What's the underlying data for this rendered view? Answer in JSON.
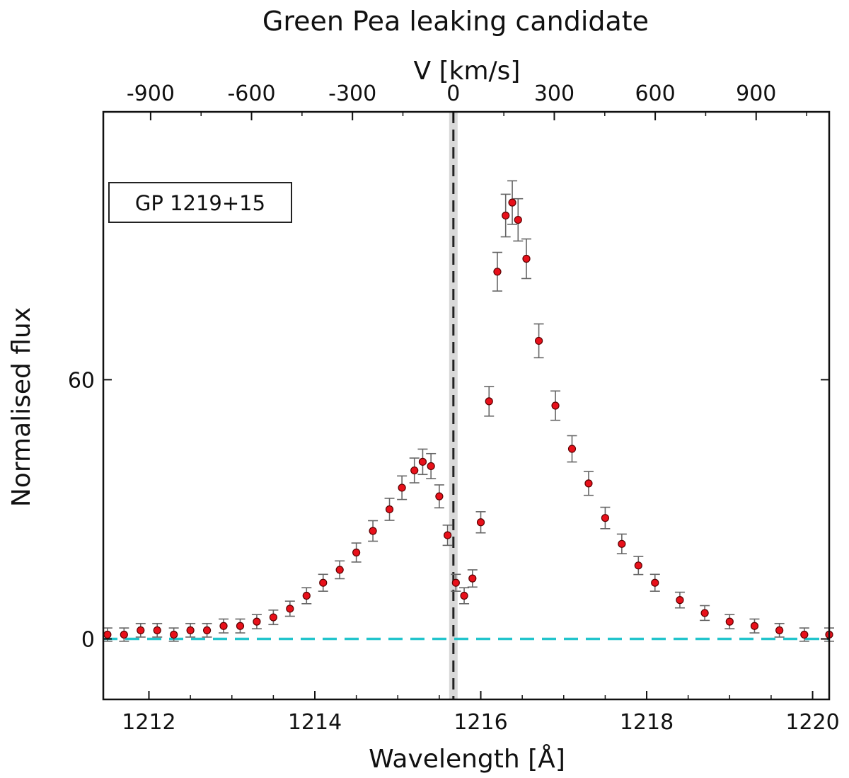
{
  "chart_data": {
    "type": "scatter",
    "title": "Green Pea leaking candidate",
    "xlabel": "Wavelength [Å]",
    "ylabel": "Normalised flux",
    "top_xlabel": "V [km/s]",
    "xlim": [
      1211.45,
      1220.2
    ],
    "ylim": [
      -14,
      122
    ],
    "x_ticks": [
      1212,
      1214,
      1216,
      1218,
      1220
    ],
    "x_tick_labels": [
      "1212",
      "1214",
      "1216",
      "1218",
      "1220"
    ],
    "y_ticks": [
      0,
      60
    ],
    "y_tick_labels": [
      "0",
      "60"
    ],
    "top_ticks_kms": [
      -900,
      -600,
      -300,
      0,
      300,
      600,
      900
    ],
    "top_tick_labels": [
      "-900",
      "-600",
      "-300",
      "0",
      "300",
      "600",
      "900"
    ],
    "annotation": "GP 1219+15",
    "systemic_wavelength": 1215.67,
    "zero_level": 0,
    "colors": {
      "points": "#e8101a",
      "point_edge": "#5a0000",
      "errorbars": "#666666",
      "zero_line": "#22c4cc",
      "systemic_line": "#222222",
      "systemic_band": "#d9d9d9"
    },
    "grid": false,
    "series": [
      {
        "x": [
          1211.5,
          1211.7,
          1211.9,
          1212.1,
          1212.3,
          1212.5,
          1212.7,
          1212.9,
          1213.1,
          1213.3,
          1213.5,
          1213.7,
          1213.9,
          1214.1,
          1214.3,
          1214.5,
          1214.7,
          1214.9,
          1215.05,
          1215.2,
          1215.3,
          1215.4,
          1215.5,
          1215.6,
          1215.7,
          1215.8,
          1215.9,
          1216.0,
          1216.1,
          1216.2,
          1216.3,
          1216.38,
          1216.45,
          1216.55,
          1216.7,
          1216.9,
          1217.1,
          1217.3,
          1217.5,
          1217.7,
          1217.9,
          1218.1,
          1218.4,
          1218.7,
          1219.0,
          1219.3,
          1219.6,
          1219.9,
          1220.2
        ],
        "y": [
          1,
          1,
          2,
          2,
          1,
          2,
          2,
          3,
          3,
          4,
          5,
          7,
          10,
          13,
          16,
          20,
          25,
          30,
          35,
          39,
          41,
          40,
          33,
          24,
          13,
          10,
          14,
          27,
          55,
          85,
          98,
          101,
          97,
          88,
          69,
          54,
          44,
          36,
          28,
          22,
          17,
          13,
          9,
          6,
          4,
          3,
          2,
          1,
          1
        ]
      }
    ]
  }
}
